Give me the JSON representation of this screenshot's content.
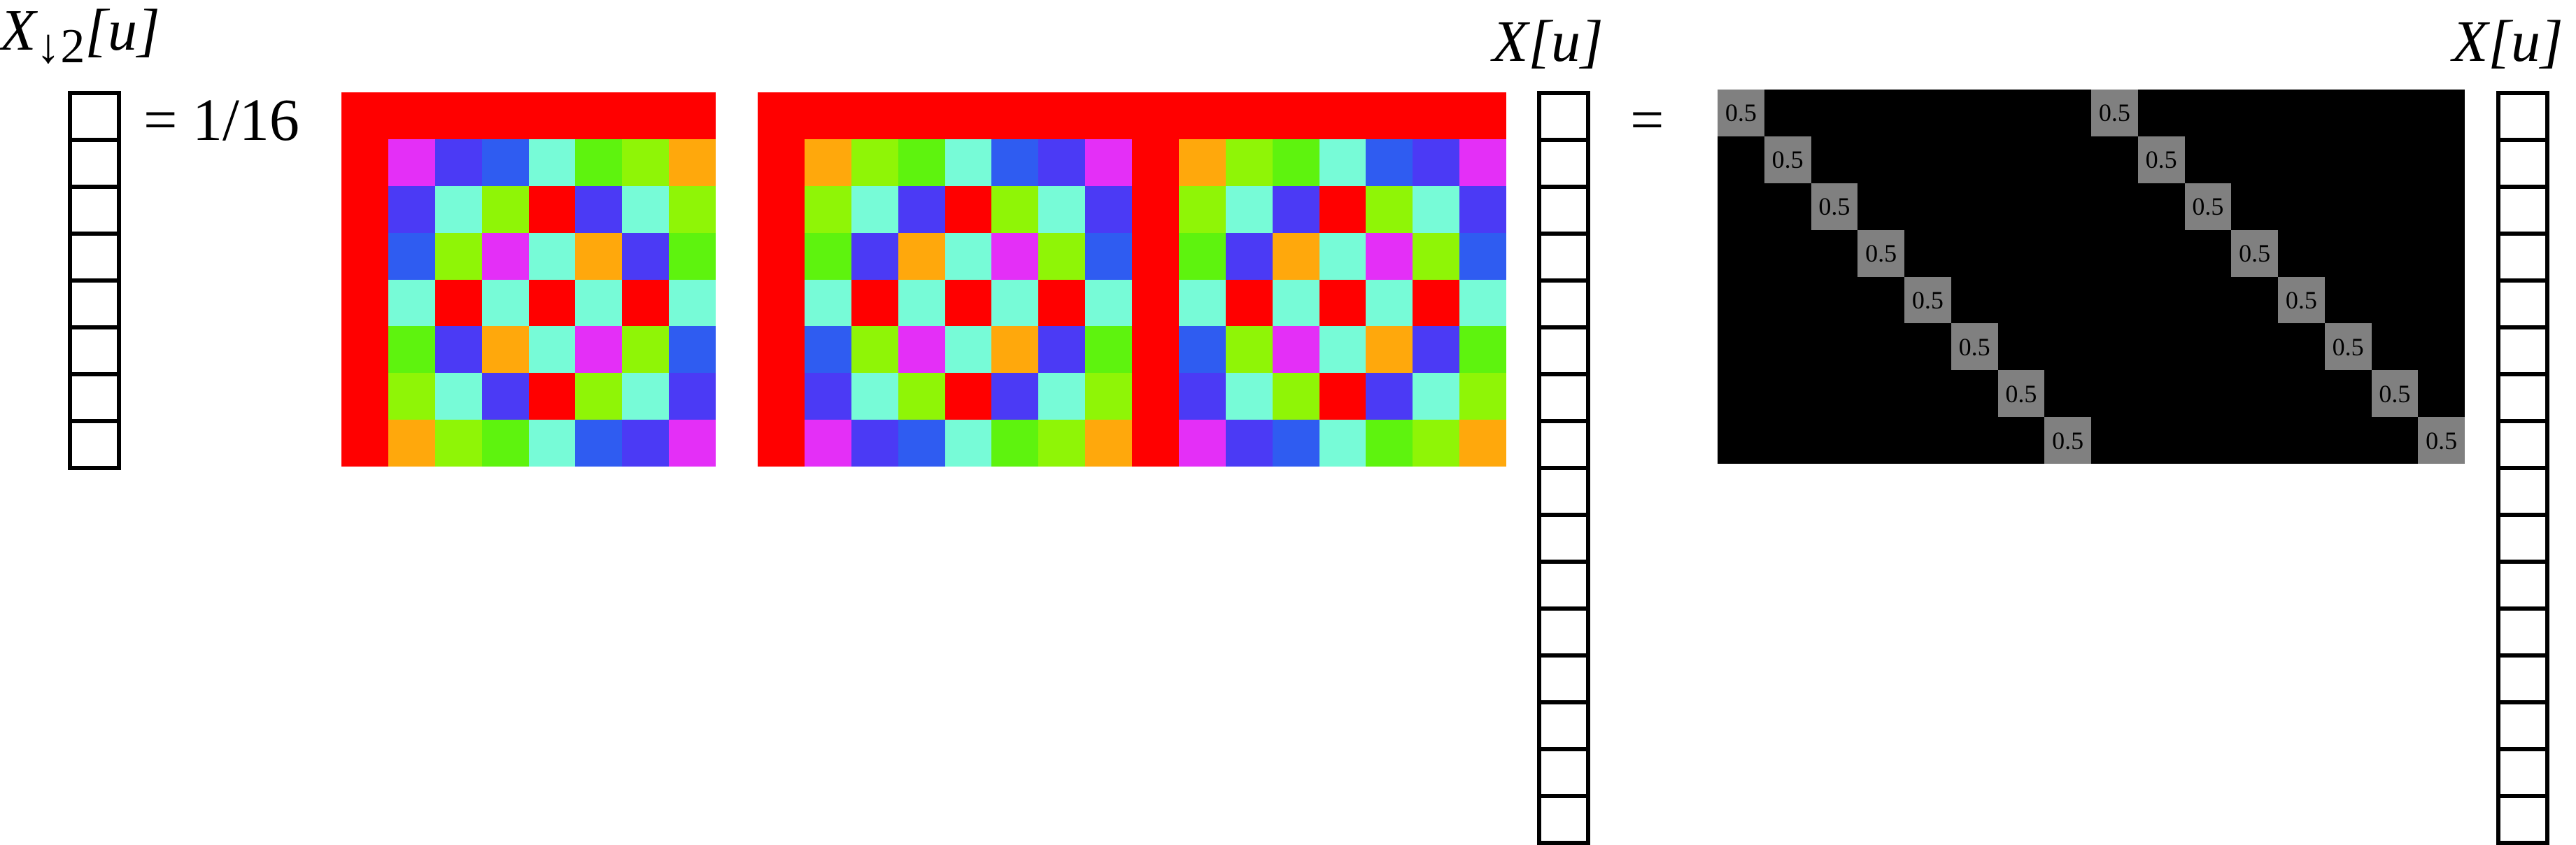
{
  "colors": {
    "red": "#ff0000",
    "magenta": "#e42ff7",
    "violet": "#4b3af5",
    "blue": "#2f5cf1",
    "cyan": "#77fbd7",
    "green": "#5ef30e",
    "lime": "#8ff506",
    "orange": "#ffa80c",
    "black": "#000000",
    "gray": "#808080"
  },
  "labels": {
    "downsampled": {
      "base": "X",
      "sub": "↓2",
      "arg": "[u]"
    },
    "x_middle": {
      "base": "X",
      "arg": "[u]"
    },
    "x_right": {
      "base": "X",
      "arg": "[u]"
    }
  },
  "equations": {
    "first": "= 1/16",
    "second": "="
  },
  "vectors": {
    "downsampled_length": 8,
    "signal_length": 16
  },
  "diagram": {
    "dft_matrix_8x8": [
      [
        "red",
        "red",
        "red",
        "red",
        "red",
        "red",
        "red",
        "red"
      ],
      [
        "red",
        "magenta",
        "violet",
        "blue",
        "cyan",
        "green",
        "lime",
        "orange"
      ],
      [
        "red",
        "violet",
        "cyan",
        "lime",
        "red",
        "violet",
        "cyan",
        "lime"
      ],
      [
        "red",
        "blue",
        "lime",
        "magenta",
        "cyan",
        "orange",
        "violet",
        "green"
      ],
      [
        "red",
        "cyan",
        "red",
        "cyan",
        "red",
        "cyan",
        "red",
        "cyan"
      ],
      [
        "red",
        "green",
        "violet",
        "orange",
        "cyan",
        "magenta",
        "lime",
        "blue"
      ],
      [
        "red",
        "lime",
        "cyan",
        "violet",
        "red",
        "lime",
        "cyan",
        "violet"
      ],
      [
        "red",
        "orange",
        "lime",
        "green",
        "cyan",
        "blue",
        "violet",
        "magenta"
      ]
    ],
    "idft_matrix_8x16": [
      [
        "red",
        "red",
        "red",
        "red",
        "red",
        "red",
        "red",
        "red",
        "red",
        "red",
        "red",
        "red",
        "red",
        "red",
        "red",
        "red"
      ],
      [
        "red",
        "orange",
        "lime",
        "green",
        "cyan",
        "blue",
        "violet",
        "magenta",
        "red",
        "orange",
        "lime",
        "green",
        "cyan",
        "blue",
        "violet",
        "magenta"
      ],
      [
        "red",
        "lime",
        "cyan",
        "violet",
        "red",
        "lime",
        "cyan",
        "violet",
        "red",
        "lime",
        "cyan",
        "violet",
        "red",
        "lime",
        "cyan",
        "violet"
      ],
      [
        "red",
        "green",
        "violet",
        "orange",
        "cyan",
        "magenta",
        "lime",
        "blue",
        "red",
        "green",
        "violet",
        "orange",
        "cyan",
        "magenta",
        "lime",
        "blue"
      ],
      [
        "red",
        "cyan",
        "red",
        "cyan",
        "red",
        "cyan",
        "red",
        "cyan",
        "red",
        "cyan",
        "red",
        "cyan",
        "red",
        "cyan",
        "red",
        "cyan"
      ],
      [
        "red",
        "blue",
        "lime",
        "magenta",
        "cyan",
        "orange",
        "violet",
        "green",
        "red",
        "blue",
        "lime",
        "magenta",
        "cyan",
        "orange",
        "violet",
        "green"
      ],
      [
        "red",
        "violet",
        "cyan",
        "lime",
        "red",
        "violet",
        "cyan",
        "lime",
        "red",
        "violet",
        "cyan",
        "lime",
        "red",
        "violet",
        "cyan",
        "lime"
      ],
      [
        "red",
        "magenta",
        "violet",
        "blue",
        "cyan",
        "green",
        "lime",
        "orange",
        "red",
        "magenta",
        "violet",
        "blue",
        "cyan",
        "green",
        "lime",
        "orange"
      ]
    ],
    "downsample_matrix": {
      "rows": 8,
      "cols": 16,
      "value": "0.5"
    }
  }
}
